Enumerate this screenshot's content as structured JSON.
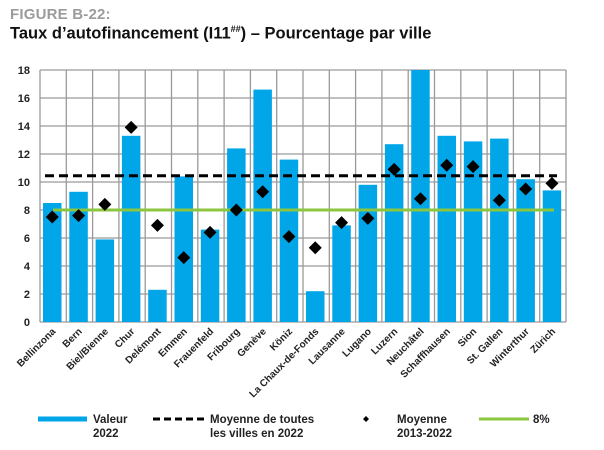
{
  "figure_label": "FIGURE B-22:",
  "title_main": "Taux d’autofinancement (I11",
  "title_sup": "##",
  "title_end": ") – Pourcentage par ville",
  "colors": {
    "bar": "#00a6e8",
    "grid": "#9a9a9a",
    "average_line": "#000000",
    "target_line": "#8cc63f",
    "diamond": "#000000",
    "figure_label": "#9b9b9b"
  },
  "chart_data": {
    "type": "bar",
    "title": "Taux d’autofinancement (I11##) – Pourcentage par ville",
    "xlabel": "",
    "ylabel": "",
    "ylim": [
      0,
      18
    ],
    "yticks": [
      0,
      2,
      4,
      6,
      8,
      10,
      12,
      14,
      16,
      18
    ],
    "grid": true,
    "legend_position": "bottom",
    "categories": [
      "Bellinzona",
      "Bern",
      "Biel/Bienne",
      "Chur",
      "Delémont",
      "Emmen",
      "Frauenfeld",
      "Fribourg",
      "Genève",
      "Köniz",
      "La Chaux-de-Fonds",
      "Lausanne",
      "Lugano",
      "Luzern",
      "Neuchâtel",
      "Schaffhausen",
      "Sion",
      "St. Gallen",
      "Winterthur",
      "Zürich"
    ],
    "series": [
      {
        "name": "Valeur 2022",
        "type": "bar",
        "values": [
          8.5,
          9.3,
          5.9,
          13.3,
          2.3,
          10.4,
          6.6,
          12.4,
          16.6,
          11.6,
          2.2,
          6.9,
          9.8,
          12.7,
          18.0,
          13.3,
          12.9,
          13.1,
          10.2,
          9.4
        ]
      },
      {
        "name": "Moyenne 2013-2022",
        "type": "scatter",
        "marker": "diamond",
        "values": [
          7.5,
          7.6,
          8.4,
          13.9,
          6.9,
          4.6,
          6.4,
          8.0,
          9.3,
          6.1,
          5.3,
          7.1,
          7.4,
          10.9,
          8.8,
          11.2,
          11.1,
          8.7,
          9.5,
          9.9
        ]
      },
      {
        "name": "Moyenne de toutes les villes en 2022",
        "type": "hline",
        "style": "dashed",
        "value": 10.45
      },
      {
        "name": "8%",
        "type": "hline",
        "style": "solid",
        "value": 8
      }
    ]
  },
  "legend": [
    {
      "key": "bar",
      "line1": "Valeur",
      "line2": "2022"
    },
    {
      "key": "dashed",
      "line1": "Moyenne de toutes",
      "line2": "les villes en 2022"
    },
    {
      "key": "diamond",
      "line1": "Moyenne",
      "line2": "2013-2022"
    },
    {
      "key": "green",
      "line1": "8%",
      "line2": ""
    }
  ]
}
